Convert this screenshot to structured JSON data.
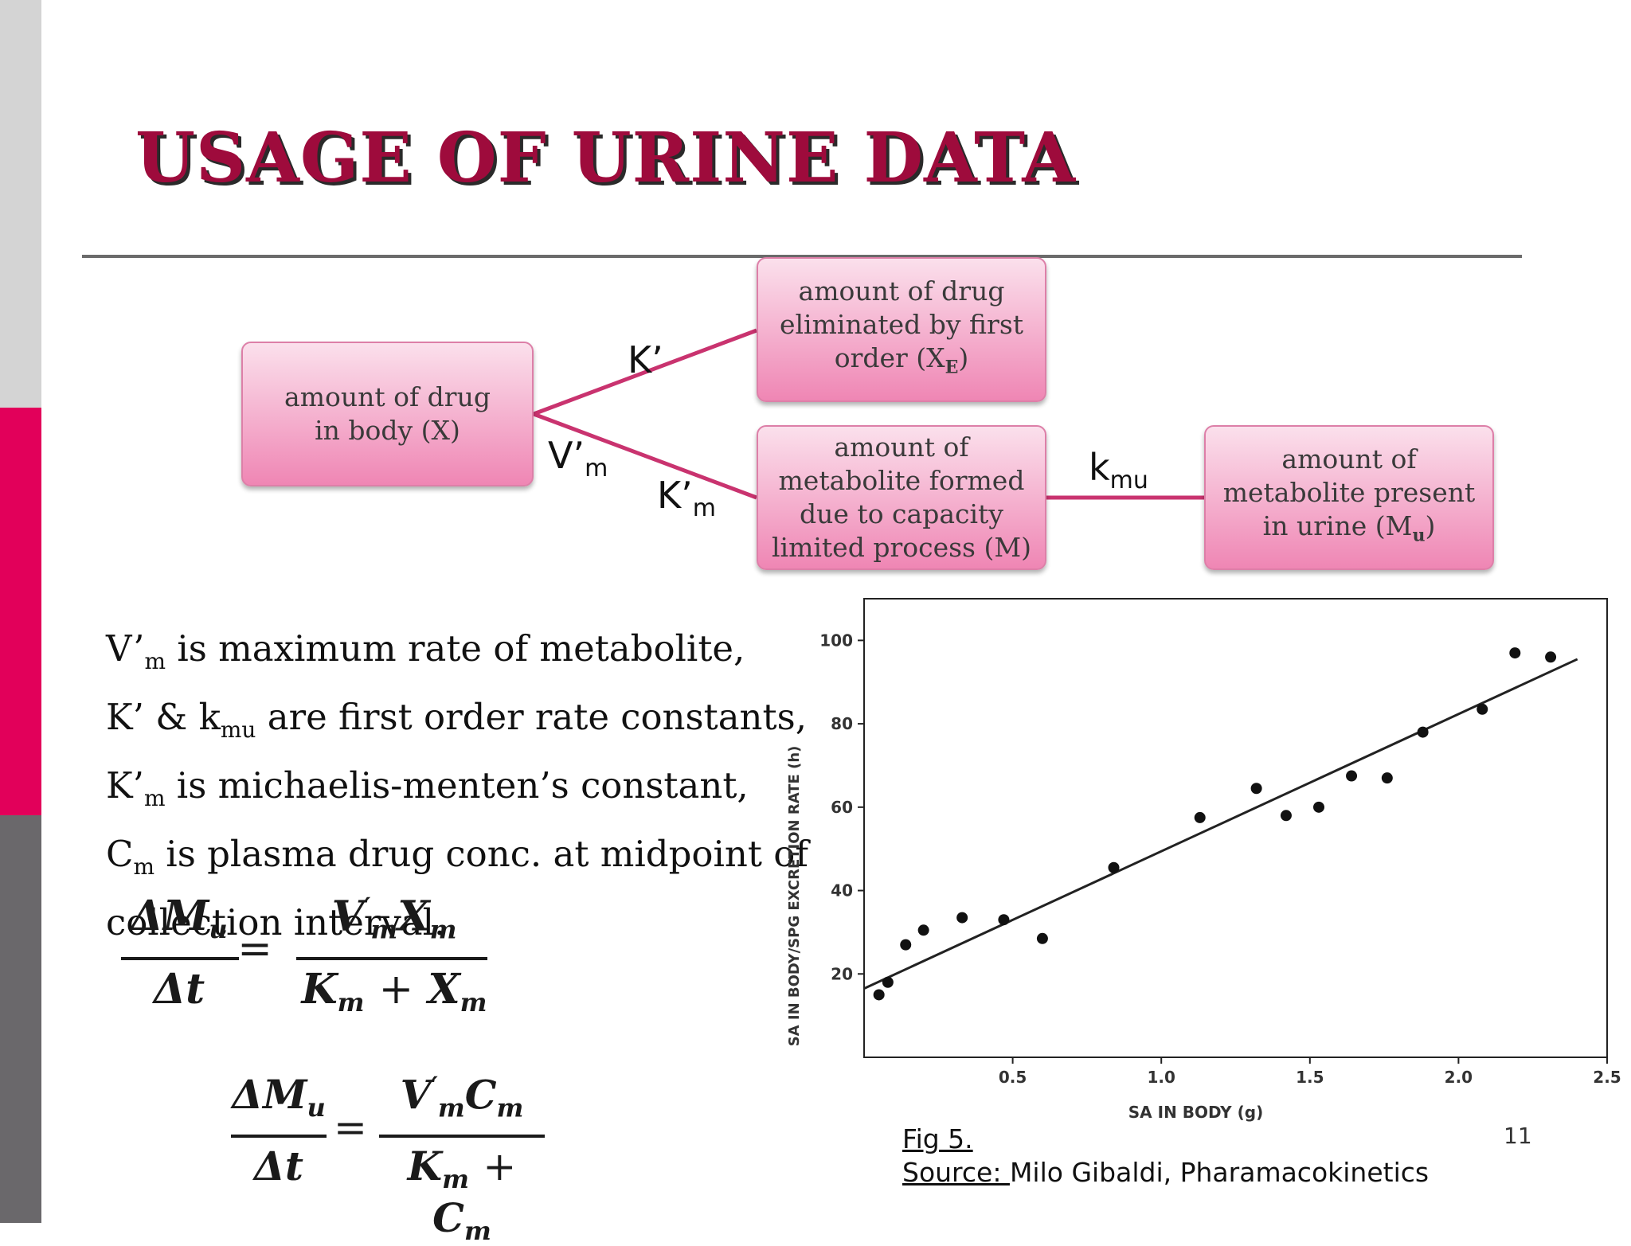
{
  "slide": {
    "title": "USAGE OF URINE DATA",
    "page_number": "11",
    "colors": {
      "title": "#9e0b3c",
      "sidebar_top": "#d4d4d4",
      "sidebar_mid": "#e2005a",
      "sidebar_bottom": "#6a686b",
      "box_fill": "#ef86b4",
      "connector": "#c9336f"
    }
  },
  "diagram": {
    "box_body": "amount of drug in body (X)",
    "box_eliminated": "amount of drug eliminated by first order (X",
    "box_eliminated_sub": "E",
    "box_eliminated_end": ")",
    "box_metabolite_formed": "amount of metabolite formed due to capacity limited process (M)",
    "box_metabolite_urine": "amount of metabolite present in urine  (M",
    "box_metabolite_urine_sub": "u",
    "box_metabolite_urine_end": ")",
    "label_k_prime": "K’",
    "label_vm_main": "V’",
    "label_vm_sub": "m",
    "label_km_main": "K’",
    "label_km_sub": "m",
    "label_kmu_main": "k",
    "label_kmu_sub": "mu"
  },
  "definitions": [
    {
      "pre": " V’",
      "sub": "m",
      "post": " is maximum rate of metabolite,"
    },
    {
      "pre": "K’ & k",
      "sub": "mu",
      "post": " are first order rate constants,"
    },
    {
      "pre": "K’",
      "sub": "m",
      "post": " is michaelis-menten’s constant,"
    },
    {
      "pre": "C",
      "sub": "m",
      "post": " is plasma drug conc. at midpoint of"
    },
    {
      "pre": "collection interval.",
      "sub": "",
      "post": ""
    }
  ],
  "equations": {
    "delta_m": "ΔM",
    "u_sub": "u",
    "delta_t": "Δt",
    "equals": "=",
    "v_main": "V",
    "v_prime": "′",
    "m_sub": "m",
    "x_main": "X",
    "k_main": "K",
    "plus": "+",
    "c_main": "C"
  },
  "chart_data": {
    "type": "scatter",
    "xlabel": "SA IN BODY (g)",
    "ylabel": "SA IN BODY/SPG EXCRETION RATE (h)",
    "xlim": [
      0,
      2.5
    ],
    "ylim": [
      0,
      110
    ],
    "x_ticks": [
      0.5,
      1.0,
      1.5,
      2.0,
      2.5
    ],
    "x_tick_labels": [
      "0.5",
      "1.0",
      "1.5",
      "2.0",
      "2.5"
    ],
    "y_ticks": [
      20,
      40,
      60,
      80,
      100
    ],
    "y_tick_labels": [
      "20",
      "40",
      "60",
      "80",
      "100"
    ],
    "points": [
      [
        0.05,
        15
      ],
      [
        0.08,
        18
      ],
      [
        0.14,
        27
      ],
      [
        0.2,
        30.5
      ],
      [
        0.33,
        33.5
      ],
      [
        0.47,
        33
      ],
      [
        0.6,
        28.5
      ],
      [
        0.84,
        45.5
      ],
      [
        1.13,
        57.5
      ],
      [
        1.32,
        64.5
      ],
      [
        1.42,
        58
      ],
      [
        1.53,
        60
      ],
      [
        1.64,
        67.5
      ],
      [
        1.76,
        67
      ],
      [
        1.88,
        78
      ],
      [
        2.08,
        83.5
      ],
      [
        2.19,
        97
      ],
      [
        2.31,
        96
      ]
    ],
    "trend_line": {
      "x": [
        0.0,
        2.4
      ],
      "y": [
        16.5,
        95.5
      ]
    },
    "grid": false,
    "legend": "none"
  },
  "caption": {
    "fig_label": "Fig 5.",
    "source_label": "Source: ",
    "source_text": "Milo Gibaldi, Pharamacokinetics"
  }
}
